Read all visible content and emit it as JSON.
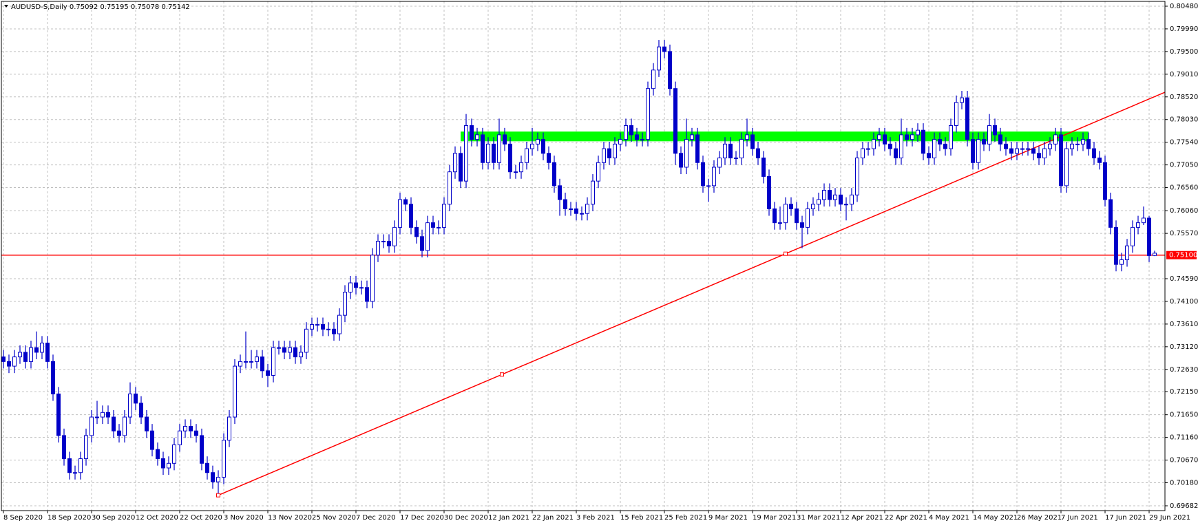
{
  "chart_data": {
    "type": "candlestick",
    "title": "AUDUSD-S,Daily  0.75092 0.75195 0.75078 0.75142",
    "categories": [
      "8 Sep 2020",
      null,
      null,
      null,
      null,
      null,
      null,
      null,
      "18 Sep 2020",
      null,
      null,
      null,
      null,
      null,
      null,
      null,
      "30 Sep 2020",
      null,
      null,
      null,
      null,
      null,
      null,
      null,
      "12 Oct 2020",
      null,
      null,
      null,
      null,
      null,
      null,
      null,
      "22 Oct 2020",
      null,
      null,
      null,
      null,
      null,
      null,
      null,
      "3 Nov 2020",
      null,
      null,
      null,
      null,
      null,
      null,
      null,
      "13 Nov 2020",
      null,
      null,
      null,
      null,
      null,
      null,
      null,
      "25 Nov 2020",
      null,
      null,
      null,
      null,
      null,
      null,
      null,
      "7 Dec 2020",
      null,
      null,
      null,
      null,
      null,
      null,
      null,
      "17 Dec 2020",
      null,
      null,
      null,
      null,
      null,
      null,
      null,
      "30 Dec 2020",
      null,
      null,
      null,
      null,
      null,
      null,
      null,
      "12 Jan 2021",
      null,
      null,
      null,
      null,
      null,
      null,
      null,
      "22 Jan 2021",
      null,
      null,
      null,
      null,
      null,
      null,
      null,
      "3 Feb 2021",
      null,
      null,
      null,
      null,
      null,
      null,
      null,
      "15 Feb 2021",
      null,
      null,
      null,
      null,
      null,
      null,
      null,
      "25 Feb 2021",
      null,
      null,
      null,
      null,
      null,
      null,
      null,
      "9 Mar 2021",
      null,
      null,
      null,
      null,
      null,
      null,
      null,
      "19 Mar 2021",
      null,
      null,
      null,
      null,
      null,
      null,
      null,
      "31 Mar 2021",
      null,
      null,
      null,
      null,
      null,
      null,
      null,
      "12 Apr 2021",
      null,
      null,
      null,
      null,
      null,
      null,
      null,
      "22 Apr 2021",
      null,
      null,
      null,
      null,
      null,
      null,
      null,
      "4 May 2021",
      null,
      null,
      null,
      null,
      null,
      null,
      null,
      "14 May 2021",
      null,
      null,
      null,
      null,
      null,
      null,
      null,
      "26 May 2021",
      null,
      null,
      null,
      null,
      null,
      null,
      null,
      "7 Jun 2021",
      null,
      null,
      null,
      null,
      null,
      null,
      null,
      "17 Jun 2021",
      null,
      null,
      null,
      null,
      null,
      null,
      null,
      "29 Jun 2021",
      null
    ],
    "open": [
      0.729,
      0.728,
      0.727,
      0.729,
      0.73,
      0.728,
      0.731,
      0.73,
      0.732,
      0.728,
      0.721,
      0.712,
      0.707,
      0.704,
      0.704,
      0.707,
      0.712,
      0.716,
      0.716,
      0.717,
      0.716,
      0.713,
      0.712,
      0.716,
      0.721,
      0.719,
      0.716,
      0.713,
      0.709,
      0.707,
      0.705,
      0.706,
      0.71,
      0.713,
      0.714,
      0.713,
      0.712,
      0.706,
      0.704,
      0.702,
      0.703,
      0.711,
      0.716,
      0.727,
      0.728,
      0.728,
      0.728,
      0.729,
      0.726,
      0.725,
      0.731,
      0.731,
      0.73,
      0.731,
      0.729,
      0.73,
      0.735,
      0.736,
      0.736,
      0.735,
      0.735,
      0.734,
      0.738,
      0.743,
      0.745,
      0.744,
      0.744,
      0.741,
      0.751,
      0.754,
      0.754,
      0.753,
      0.757,
      0.763,
      0.762,
      0.757,
      0.755,
      0.752,
      0.758,
      0.757,
      0.757,
      0.762,
      0.769,
      0.773,
      0.767,
      0.779,
      0.776,
      0.777,
      0.771,
      0.775,
      0.771,
      0.777,
      0.775,
      0.769,
      0.769,
      0.771,
      0.774,
      0.775,
      0.776,
      0.773,
      0.771,
      0.766,
      0.763,
      0.761,
      0.761,
      0.76,
      0.76,
      0.762,
      0.767,
      0.771,
      0.774,
      0.772,
      0.775,
      0.776,
      0.779,
      0.777,
      0.776,
      0.776,
      0.787,
      0.791,
      0.796,
      0.795,
      0.787,
      0.773,
      0.77,
      0.776,
      0.777,
      0.771,
      0.766,
      0.766,
      0.77,
      0.772,
      0.775,
      0.772,
      0.772,
      0.776,
      0.777,
      0.774,
      0.772,
      0.768,
      0.761,
      0.758,
      0.758,
      0.762,
      0.761,
      0.758,
      0.757,
      0.761,
      0.762,
      0.763,
      0.765,
      0.763,
      0.764,
      0.762,
      0.762,
      0.764,
      0.772,
      0.774,
      0.774,
      0.776,
      0.777,
      0.775,
      0.774,
      0.772,
      0.777,
      0.776,
      0.777,
      0.778,
      0.773,
      0.772,
      0.776,
      0.775,
      0.774,
      0.779,
      0.784,
      0.785,
      0.776,
      0.771,
      0.776,
      0.775,
      0.779,
      0.777,
      0.775,
      0.774,
      0.773,
      0.774,
      0.774,
      0.774,
      0.773,
      0.772,
      0.774,
      0.775,
      0.777,
      0.766,
      0.774,
      0.775,
      0.775,
      0.776,
      0.774,
      0.772,
      0.771,
      0.763,
      0.757,
      0.749,
      0.75,
      0.753,
      0.757,
      0.758,
      0.759,
      0.75092
    ],
    "high": [
      0.7305,
      0.7295,
      0.7305,
      0.7315,
      0.7315,
      0.7325,
      0.7345,
      0.7335,
      0.7335,
      0.7295,
      0.7225,
      0.7135,
      0.7085,
      0.7055,
      0.7085,
      0.7135,
      0.7175,
      0.7195,
      0.7185,
      0.7185,
      0.7175,
      0.7145,
      0.7175,
      0.7235,
      0.7225,
      0.7205,
      0.7175,
      0.7145,
      0.7105,
      0.7085,
      0.7075,
      0.7115,
      0.7145,
      0.7155,
      0.7155,
      0.7145,
      0.7135,
      0.7075,
      0.7055,
      0.7045,
      0.7125,
      0.7175,
      0.7285,
      0.7295,
      0.7345,
      0.7305,
      0.7305,
      0.7305,
      0.7275,
      0.7325,
      0.7325,
      0.7325,
      0.7325,
      0.7325,
      0.7315,
      0.7365,
      0.7375,
      0.7375,
      0.7375,
      0.7365,
      0.7365,
      0.7395,
      0.7445,
      0.7465,
      0.7465,
      0.7455,
      0.7455,
      0.7525,
      0.7555,
      0.7555,
      0.7555,
      0.7585,
      0.7645,
      0.7635,
      0.7635,
      0.7585,
      0.7565,
      0.7595,
      0.7595,
      0.7585,
      0.7635,
      0.7705,
      0.7745,
      0.7745,
      0.7815,
      0.7805,
      0.7785,
      0.7785,
      0.7765,
      0.7765,
      0.7805,
      0.7785,
      0.7765,
      0.7705,
      0.7725,
      0.7755,
      0.7785,
      0.7775,
      0.7775,
      0.7745,
      0.7725,
      0.7675,
      0.7645,
      0.7625,
      0.7625,
      0.7615,
      0.7635,
      0.7685,
      0.7725,
      0.7755,
      0.7755,
      0.7765,
      0.7775,
      0.7805,
      0.7805,
      0.7785,
      0.7775,
      0.7885,
      0.7925,
      0.7975,
      0.7975,
      0.7965,
      0.7885,
      0.7745,
      0.7805,
      0.7785,
      0.7785,
      0.7725,
      0.7675,
      0.7715,
      0.7735,
      0.7765,
      0.7765,
      0.7735,
      0.7775,
      0.7805,
      0.7785,
      0.7755,
      0.7735,
      0.7695,
      0.7625,
      0.7615,
      0.7635,
      0.7635,
      0.7625,
      0.7595,
      0.7625,
      0.7635,
      0.7645,
      0.7665,
      0.7665,
      0.7655,
      0.7655,
      0.7635,
      0.7655,
      0.7735,
      0.7755,
      0.7755,
      0.7775,
      0.7785,
      0.7785,
      0.7765,
      0.7755,
      0.7805,
      0.7785,
      0.7785,
      0.7795,
      0.7795,
      0.7745,
      0.7775,
      0.7775,
      0.7765,
      0.7805,
      0.7855,
      0.7865,
      0.7865,
      0.7775,
      0.7775,
      0.7775,
      0.7815,
      0.7805,
      0.7785,
      0.7765,
      0.7755,
      0.7755,
      0.7755,
      0.7755,
      0.7755,
      0.7745,
      0.7755,
      0.7765,
      0.7785,
      0.7785,
      0.7755,
      0.7765,
      0.7765,
      0.7775,
      0.7775,
      0.7755,
      0.7735,
      0.7725,
      0.7645,
      0.7585,
      0.7515,
      0.7545,
      0.7585,
      0.7595,
      0.7615,
      0.7595,
      0.75195
    ],
    "low": [
      0.7265,
      0.7255,
      0.7255,
      0.7275,
      0.7265,
      0.7265,
      0.7285,
      0.7285,
      0.7265,
      0.7195,
      0.7105,
      0.7055,
      0.7025,
      0.7025,
      0.7025,
      0.7055,
      0.7105,
      0.7145,
      0.7145,
      0.7145,
      0.7115,
      0.7105,
      0.7105,
      0.7145,
      0.7175,
      0.7145,
      0.7115,
      0.7075,
      0.7055,
      0.7035,
      0.7035,
      0.7045,
      0.7085,
      0.7115,
      0.7115,
      0.7105,
      0.7045,
      0.7025,
      0.7005,
      0.6995,
      0.7015,
      0.7095,
      0.7145,
      0.7255,
      0.7265,
      0.7265,
      0.7265,
      0.7245,
      0.7225,
      0.7235,
      0.7295,
      0.7285,
      0.7285,
      0.7275,
      0.7275,
      0.7285,
      0.7335,
      0.7345,
      0.7335,
      0.7335,
      0.7325,
      0.7325,
      0.7365,
      0.7415,
      0.7425,
      0.7425,
      0.7395,
      0.7395,
      0.7495,
      0.7525,
      0.7515,
      0.7515,
      0.7555,
      0.7605,
      0.7555,
      0.7535,
      0.7505,
      0.7505,
      0.7555,
      0.7555,
      0.7555,
      0.7605,
      0.7675,
      0.7655,
      0.7655,
      0.7745,
      0.7745,
      0.7695,
      0.7695,
      0.7695,
      0.7695,
      0.7735,
      0.7675,
      0.7675,
      0.7675,
      0.7695,
      0.7725,
      0.7735,
      0.7715,
      0.7695,
      0.7645,
      0.7595,
      0.7595,
      0.7595,
      0.7585,
      0.7585,
      0.7585,
      0.7605,
      0.7655,
      0.7695,
      0.7705,
      0.7705,
      0.7735,
      0.7745,
      0.7755,
      0.7745,
      0.7745,
      0.7745,
      0.7855,
      0.7895,
      0.7935,
      0.7855,
      0.7705,
      0.7685,
      0.7685,
      0.7745,
      0.7695,
      0.7645,
      0.7625,
      0.7645,
      0.7685,
      0.7705,
      0.7705,
      0.7705,
      0.7705,
      0.7745,
      0.7725,
      0.7705,
      0.7665,
      0.7595,
      0.7565,
      0.7565,
      0.7565,
      0.7595,
      0.7565,
      0.7525,
      0.7555,
      0.7595,
      0.7605,
      0.7615,
      0.7615,
      0.7615,
      0.7605,
      0.7585,
      0.7605,
      0.7625,
      0.7705,
      0.7725,
      0.7725,
      0.7745,
      0.7735,
      0.7725,
      0.7705,
      0.7705,
      0.7745,
      0.7745,
      0.7755,
      0.7715,
      0.7705,
      0.7705,
      0.7735,
      0.7725,
      0.7725,
      0.7775,
      0.7825,
      0.7745,
      0.7695,
      0.7695,
      0.7735,
      0.7735,
      0.7755,
      0.7735,
      0.7725,
      0.7715,
      0.7715,
      0.7725,
      0.7725,
      0.7715,
      0.7705,
      0.7705,
      0.7725,
      0.7735,
      0.7645,
      0.7645,
      0.7725,
      0.7735,
      0.7735,
      0.7725,
      0.7705,
      0.7695,
      0.7615,
      0.7555,
      0.7475,
      0.7475,
      0.7485,
      0.7515,
      0.7555,
      0.7575,
      0.7495,
      0.75078
    ],
    "close": [
      0.728,
      0.727,
      0.729,
      0.73,
      0.728,
      0.731,
      0.73,
      0.732,
      0.728,
      0.721,
      0.712,
      0.707,
      0.704,
      0.704,
      0.707,
      0.712,
      0.716,
      0.716,
      0.717,
      0.716,
      0.713,
      0.712,
      0.716,
      0.721,
      0.719,
      0.716,
      0.713,
      0.709,
      0.707,
      0.705,
      0.706,
      0.71,
      0.713,
      0.714,
      0.713,
      0.712,
      0.706,
      0.704,
      0.702,
      0.703,
      0.711,
      0.716,
      0.727,
      0.728,
      0.728,
      0.728,
      0.729,
      0.726,
      0.725,
      0.731,
      0.731,
      0.73,
      0.731,
      0.729,
      0.73,
      0.735,
      0.736,
      0.736,
      0.735,
      0.735,
      0.734,
      0.738,
      0.743,
      0.745,
      0.744,
      0.744,
      0.741,
      0.751,
      0.754,
      0.754,
      0.753,
      0.757,
      0.763,
      0.762,
      0.757,
      0.755,
      0.752,
      0.758,
      0.757,
      0.757,
      0.762,
      0.769,
      0.773,
      0.767,
      0.779,
      0.776,
      0.777,
      0.771,
      0.775,
      0.771,
      0.777,
      0.775,
      0.769,
      0.769,
      0.771,
      0.774,
      0.775,
      0.776,
      0.773,
      0.771,
      0.766,
      0.763,
      0.761,
      0.761,
      0.76,
      0.76,
      0.762,
      0.767,
      0.771,
      0.774,
      0.772,
      0.775,
      0.776,
      0.779,
      0.777,
      0.776,
      0.776,
      0.787,
      0.791,
      0.796,
      0.795,
      0.787,
      0.773,
      0.77,
      0.776,
      0.777,
      0.771,
      0.766,
      0.766,
      0.77,
      0.772,
      0.775,
      0.772,
      0.772,
      0.776,
      0.777,
      0.774,
      0.772,
      0.768,
      0.761,
      0.758,
      0.758,
      0.762,
      0.761,
      0.758,
      0.757,
      0.761,
      0.762,
      0.763,
      0.765,
      0.763,
      0.764,
      0.762,
      0.762,
      0.764,
      0.772,
      0.774,
      0.774,
      0.776,
      0.777,
      0.775,
      0.774,
      0.772,
      0.777,
      0.776,
      0.777,
      0.778,
      0.773,
      0.772,
      0.776,
      0.775,
      0.774,
      0.779,
      0.784,
      0.785,
      0.776,
      0.771,
      0.776,
      0.775,
      0.779,
      0.777,
      0.775,
      0.774,
      0.773,
      0.774,
      0.774,
      0.774,
      0.773,
      0.772,
      0.774,
      0.775,
      0.777,
      0.766,
      0.774,
      0.775,
      0.775,
      0.776,
      0.774,
      0.772,
      0.771,
      0.763,
      0.757,
      0.749,
      0.75,
      0.753,
      0.757,
      0.758,
      0.759,
      0.7509,
      0.75142
    ],
    "color": "#0000c8",
    "ylim": [
      0.69682,
      0.8048
    ],
    "yticks": [
      0.69682,
      {
        "value": 0.7018,
        "label": "0.70180"
      },
      {
        "value": 0.7067,
        "label": "0.70670"
      },
      {
        "value": 0.7116,
        "label": "0.71160"
      },
      {
        "value": 0.7165,
        "label": "0.71650"
      },
      {
        "value": 0.7215,
        "label": "0.72150"
      },
      {
        "value": 0.7263,
        "label": "0.72630"
      },
      {
        "value": 0.7312,
        "label": "0.73120"
      },
      {
        "value": 0.7361,
        "label": "0.73610"
      },
      {
        "value": 0.741,
        "label": "0.74100"
      },
      {
        "value": 0.7459,
        "label": "0.74590"
      },
      {
        "value": 0.7557,
        "label": "0.75570"
      },
      {
        "value": 0.7606,
        "label": "0.76060"
      },
      {
        "value": 0.7656,
        "label": "0.76560"
      },
      {
        "value": 0.7705,
        "label": "0.77050"
      },
      {
        "value": 0.7754,
        "label": "0.77540"
      },
      {
        "value": 0.7803,
        "label": "0.78030"
      },
      {
        "value": 0.7852,
        "label": "0.78520"
      },
      {
        "value": 0.7901,
        "label": "0.79010"
      },
      {
        "value": 0.795,
        "label": "0.79500"
      },
      {
        "value": 0.7999,
        "label": "0.79990"
      },
      {
        "value": 0.8048,
        "label": "0.80480"
      }
    ],
    "grid": true,
    "hline": {
      "value": 0.751,
      "label": "0.75100",
      "color": "#ff0000"
    },
    "trendline": {
      "x": [
        39,
        142
      ],
      "y": [
        0.6991,
        0.7513
      ],
      "color": "#ff0000"
    },
    "zone": {
      "x": [
        83,
        197
      ],
      "y": [
        0.7756,
        0.7777
      ],
      "color": "#00ff00"
    }
  }
}
